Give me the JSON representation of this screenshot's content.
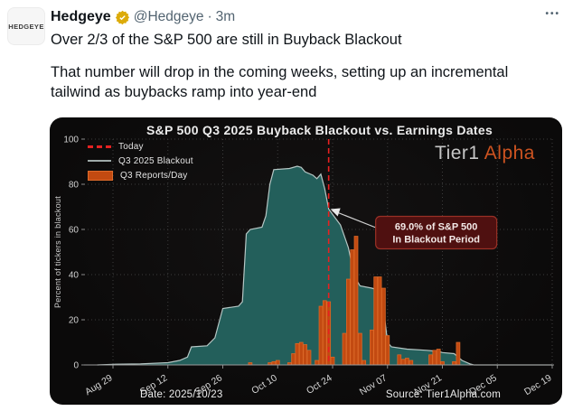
{
  "tweet": {
    "author": "Hedgeye",
    "handle": "@Hedgeye",
    "separator": "·",
    "time": "3m",
    "more_menu": "•••",
    "avatar_text": "HEDGEYE",
    "line1": "Over 2/3 of the S&P 500 are still in Buyback Blackout",
    "line2": "That number will drop in the coming weeks, setting up an incremental tailwind as buybacks ramp into year-end"
  },
  "chart_data": {
    "type": "area+bar",
    "title": "S&P 500 Q3 2025 Buyback Blackout vs. Earnings Dates",
    "watermark": {
      "gray": "Tier1",
      "orange": "Alpha"
    },
    "ylabel": "Percent of tickers in blackout",
    "date_note": "Date: 2025/10/23",
    "source_note": "Source: Tier1Alpha.com",
    "legend": [
      {
        "label": "Today",
        "swatch": "red-dashed-line"
      },
      {
        "label": "Q3 2025 Blackout",
        "swatch": "gray-line"
      },
      {
        "label": "Q3 Reports/Day",
        "swatch": "orange-rect"
      }
    ],
    "y_axis": {
      "range": [
        0,
        100
      ],
      "ticks": [
        0,
        20,
        40,
        60,
        80,
        100
      ]
    },
    "x_axis": {
      "start_tick": "2025-08-29",
      "end_tick": "2025-12-19",
      "ticks": [
        {
          "date": "2025-08-29",
          "label": "Aug 29"
        },
        {
          "date": "2025-09-12",
          "label": "Sep 12"
        },
        {
          "date": "2025-09-26",
          "label": "Sep 26"
        },
        {
          "date": "2025-10-10",
          "label": "Oct 10"
        },
        {
          "date": "2025-10-24",
          "label": "Oct 24"
        },
        {
          "date": "2025-11-07",
          "label": "Nov 07"
        },
        {
          "date": "2025-11-21",
          "label": "Nov 21"
        },
        {
          "date": "2025-12-05",
          "label": "Dec 05"
        },
        {
          "date": "2025-12-19",
          "label": "Dec 19"
        }
      ]
    },
    "today": {
      "date": "2025-10-23"
    },
    "annotation": {
      "value": 69.0,
      "line1": "69.0% of S&P 500",
      "line2": "In Blackout Period"
    },
    "blackout_pct": [
      [
        "2025-08-25",
        0
      ],
      [
        "2025-08-29",
        0.3
      ],
      [
        "2025-09-05",
        0.5
      ],
      [
        "2025-09-12",
        1
      ],
      [
        "2025-09-15",
        2
      ],
      [
        "2025-09-17",
        3.5
      ],
      [
        "2025-09-18",
        8
      ],
      [
        "2025-09-22",
        8.5
      ],
      [
        "2025-09-24",
        12
      ],
      [
        "2025-09-26",
        25
      ],
      [
        "2025-09-30",
        26
      ],
      [
        "2025-10-01",
        28
      ],
      [
        "2025-10-02",
        58
      ],
      [
        "2025-10-03",
        60
      ],
      [
        "2025-10-06",
        61
      ],
      [
        "2025-10-07",
        66
      ],
      [
        "2025-10-08",
        80
      ],
      [
        "2025-10-09",
        86.5
      ],
      [
        "2025-10-13",
        87
      ],
      [
        "2025-10-15",
        88
      ],
      [
        "2025-10-16",
        87.5
      ],
      [
        "2025-10-17",
        85.5
      ],
      [
        "2025-10-19",
        84
      ],
      [
        "2025-10-20",
        82.5
      ],
      [
        "2025-10-21",
        84.5
      ],
      [
        "2025-10-22",
        78
      ],
      [
        "2025-10-23",
        69
      ],
      [
        "2025-10-26",
        62
      ],
      [
        "2025-10-28",
        52
      ],
      [
        "2025-10-29",
        44
      ],
      [
        "2025-10-30",
        38
      ],
      [
        "2025-10-31",
        35
      ],
      [
        "2025-11-03",
        34
      ],
      [
        "2025-11-04",
        33.5
      ],
      [
        "2025-11-05",
        30
      ],
      [
        "2025-11-06",
        25
      ],
      [
        "2025-11-07",
        10
      ],
      [
        "2025-11-08",
        8
      ],
      [
        "2025-11-12",
        7
      ],
      [
        "2025-11-17",
        6.5
      ],
      [
        "2025-11-20",
        6
      ],
      [
        "2025-11-21",
        5.5
      ],
      [
        "2025-11-24",
        5
      ],
      [
        "2025-11-25",
        3.5
      ],
      [
        "2025-11-26",
        2
      ],
      [
        "2025-11-28",
        0.5
      ],
      [
        "2025-11-29",
        0
      ],
      [
        "2025-12-19",
        0
      ]
    ],
    "reports_per_day": [
      [
        "2025-10-03",
        1
      ],
      [
        "2025-10-08",
        1
      ],
      [
        "2025-10-09",
        1.5
      ],
      [
        "2025-10-10",
        2
      ],
      [
        "2025-10-13",
        1
      ],
      [
        "2025-10-14",
        5
      ],
      [
        "2025-10-15",
        9.5
      ],
      [
        "2025-10-16",
        10
      ],
      [
        "2025-10-17",
        9
      ],
      [
        "2025-10-18",
        6.5
      ],
      [
        "2025-10-20",
        2
      ],
      [
        "2025-10-21",
        26
      ],
      [
        "2025-10-22",
        28.5
      ],
      [
        "2025-10-23",
        28
      ],
      [
        "2025-10-24",
        3.5
      ],
      [
        "2025-10-27",
        14
      ],
      [
        "2025-10-28",
        38
      ],
      [
        "2025-10-29",
        51
      ],
      [
        "2025-10-30",
        57
      ],
      [
        "2025-10-31",
        14
      ],
      [
        "2025-11-01",
        2
      ],
      [
        "2025-11-03",
        15.5
      ],
      [
        "2025-11-04",
        39
      ],
      [
        "2025-11-05",
        39
      ],
      [
        "2025-11-06",
        34
      ],
      [
        "2025-11-07",
        13
      ],
      [
        "2025-11-10",
        4.5
      ],
      [
        "2025-11-11",
        2.5
      ],
      [
        "2025-11-12",
        3
      ],
      [
        "2025-11-13",
        2
      ],
      [
        "2025-11-18",
        4.5
      ],
      [
        "2025-11-19",
        6.5
      ],
      [
        "2025-11-20",
        7
      ],
      [
        "2025-11-21",
        1.5
      ],
      [
        "2025-11-24",
        1.5
      ],
      [
        "2025-11-25",
        10
      ]
    ],
    "colors": {
      "background": "#0d0c0c",
      "area": "#235f5b",
      "area_line": "#b5c6c4",
      "bar": "#c24a11",
      "bar_edge": "#de6b2a",
      "today": "#e82020",
      "grid": "#3c3c3c",
      "annotation_bg": "#4f1010",
      "annotation_border": "#993026",
      "watermark_orange": "#cd5320"
    }
  }
}
